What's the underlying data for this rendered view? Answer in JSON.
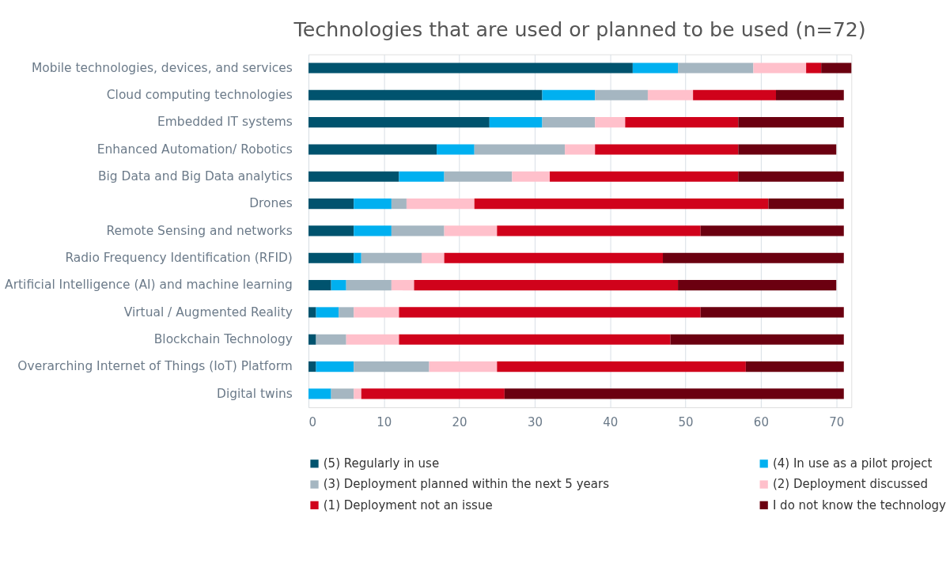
{
  "chart_data": {
    "type": "bar",
    "orientation": "horizontal",
    "stacked": true,
    "title": "Technologies that are used or planned to be used (n=72)",
    "categories": [
      "Mobile technologies, devices, and services",
      "Cloud computing technologies",
      "Embedded IT systems",
      "Enhanced Automation/ Robotics",
      "Big Data and Big Data analytics",
      "Drones",
      "Remote Sensing and networks",
      "Radio Frequency Identification (RFID)",
      "Artificial Intelligence (AI) and machine learning",
      "Virtual / Augmented Reality",
      "Blockchain Technology",
      "Overarching Internet of Things (IoT) Platform",
      "Digital twins"
    ],
    "series": [
      {
        "name": "(5) Regularly in use",
        "color": "#00536e",
        "values": [
          43,
          31,
          24,
          17,
          12,
          6,
          6,
          6,
          3,
          1,
          1,
          1,
          0
        ]
      },
      {
        "name": "(4) In use as a pilot project",
        "color": "#00b0f0",
        "values": [
          6,
          7,
          7,
          5,
          6,
          5,
          5,
          1,
          2,
          3,
          0,
          5,
          3
        ]
      },
      {
        "name": "(3) Deployment planned within the next 5 years",
        "color": "#a5b6c1",
        "values": [
          10,
          7,
          7,
          12,
          9,
          2,
          7,
          8,
          6,
          2,
          4,
          10,
          3
        ]
      },
      {
        "name": "(2) Deployment discussed",
        "color": "#ffc0cb",
        "values": [
          7,
          6,
          4,
          4,
          5,
          9,
          7,
          3,
          3,
          6,
          7,
          9,
          1
        ]
      },
      {
        "name": "(1) Deployment not an issue",
        "color": "#d0021b",
        "values": [
          2,
          11,
          15,
          19,
          25,
          39,
          27,
          29,
          35,
          40,
          36,
          33,
          19
        ]
      },
      {
        "name": "I do not know the technology",
        "color": "#6b0010",
        "values": [
          4,
          9,
          14,
          13,
          14,
          10,
          19,
          24,
          21,
          19,
          23,
          13,
          45
        ]
      }
    ],
    "xlim": [
      0,
      72
    ],
    "xticks": [
      0,
      10,
      20,
      30,
      40,
      50,
      60,
      70
    ],
    "grid": "x",
    "legend": "bottom"
  }
}
